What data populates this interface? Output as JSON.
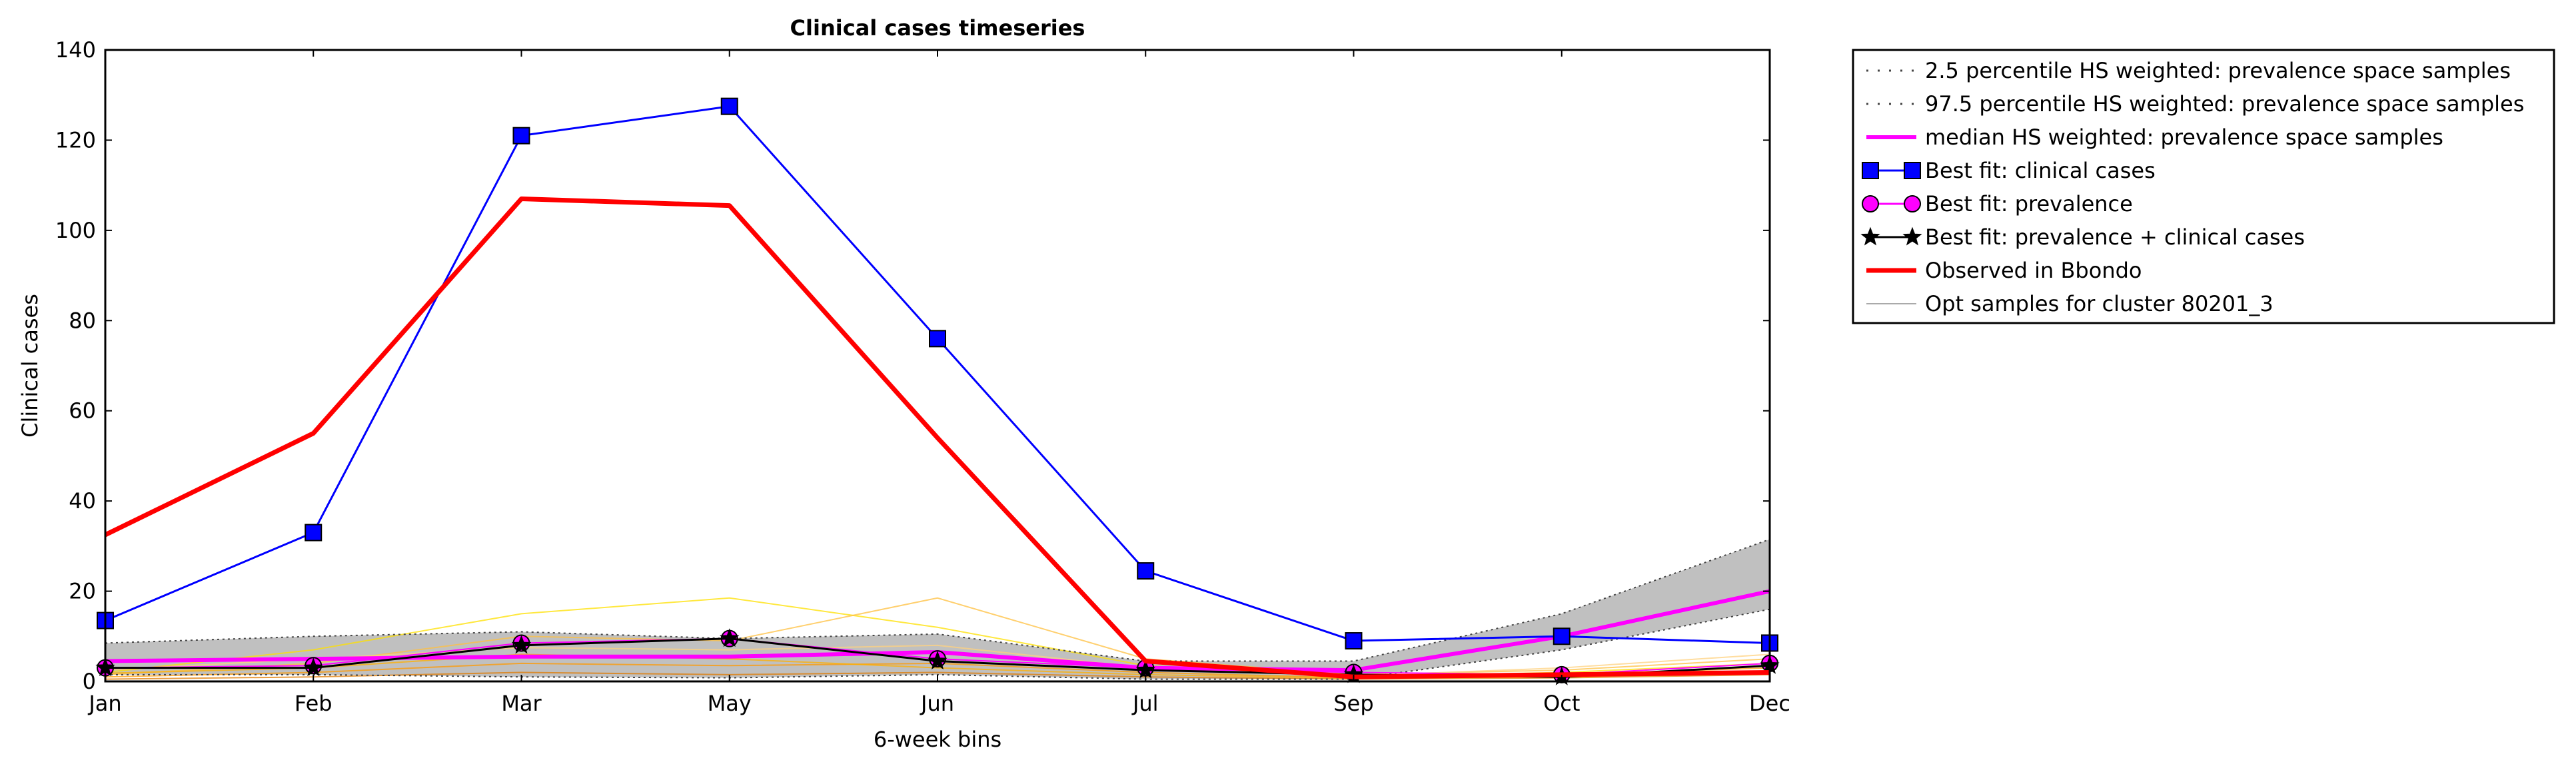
{
  "chart_data": {
    "type": "line",
    "title": "Clinical cases timeseries",
    "xlabel": "6-week bins",
    "ylabel": "Clinical cases",
    "categories": [
      "Jan",
      "Feb",
      "Mar",
      "May",
      "Jun",
      "Jul",
      "Sep",
      "Oct",
      "Dec"
    ],
    "yticks": [
      "0",
      "20",
      "40",
      "60",
      "80",
      "100",
      "120",
      "140"
    ],
    "ylim": [
      0,
      140
    ],
    "grid": false,
    "legend_position": "outside top-right",
    "band": {
      "lower_name": "2.5 percentile HS weighted: prevalence space samples",
      "upper_name": "97.5 percentile HS weighted: prevalence space samples",
      "lower": [
        1.5,
        1.5,
        1.0,
        0.8,
        1.5,
        0.5,
        0.5,
        7.0,
        16.0
      ],
      "upper": [
        8.5,
        10.0,
        11.0,
        9.5,
        10.5,
        4.5,
        4.5,
        15.0,
        31.5
      ],
      "fill_color": "#c0c0c0"
    },
    "series": [
      {
        "name": "median HS weighted: prevalence space samples",
        "color": "#ff00ff",
        "marker": "none",
        "values": [
          4.5,
          5.0,
          5.5,
          5.5,
          6.5,
          3.0,
          2.5,
          10.0,
          20.0
        ]
      },
      {
        "name": "Best fit: clinical cases",
        "color": "#0000ff",
        "marker": "square",
        "values": [
          13.5,
          33.0,
          121.0,
          127.5,
          76.0,
          24.5,
          9.0,
          10.0,
          8.5
        ]
      },
      {
        "name": "Best fit: prevalence",
        "color": "#ff00ff",
        "marker": "circle",
        "values": [
          3.0,
          3.5,
          8.5,
          9.5,
          5.0,
          3.0,
          2.0,
          1.5,
          4.0
        ]
      },
      {
        "name": "Best fit: prevalence + clinical cases",
        "color": "#000000",
        "marker": "star",
        "values": [
          3.0,
          3.0,
          8.0,
          9.5,
          4.5,
          2.5,
          1.5,
          1.0,
          3.5
        ]
      },
      {
        "name": "Observed in Bbondo",
        "color": "#ff0000",
        "marker": "none",
        "values": [
          32.5,
          55.0,
          107.0,
          105.5,
          54.0,
          4.5,
          1.0,
          1.5,
          2.0
        ]
      }
    ],
    "samples_name": "Opt samples for cluster 80201_3",
    "samples_color": "#aaaaaa",
    "sample_lines": [
      {
        "color": "#ffe000",
        "values": [
          2.0,
          7.0,
          15.0,
          18.5,
          12.0,
          3.5,
          1.0,
          2.0,
          4.0
        ]
      },
      {
        "color": "#ffc040",
        "values": [
          1.5,
          4.0,
          10.0,
          9.0,
          18.5,
          5.0,
          1.5,
          2.5,
          5.0
        ]
      },
      {
        "color": "#ff9900",
        "values": [
          1.0,
          2.0,
          4.0,
          3.5,
          4.0,
          2.0,
          0.8,
          1.5,
          3.0
        ]
      },
      {
        "color": "#ffd27f",
        "values": [
          2.5,
          5.0,
          7.5,
          7.0,
          8.0,
          3.0,
          1.2,
          3.0,
          6.0
        ]
      },
      {
        "color": "#e07b00",
        "values": [
          0.5,
          1.0,
          2.0,
          1.5,
          2.0,
          1.0,
          0.5,
          0.8,
          1.5
        ]
      },
      {
        "color": "#ffb000",
        "values": [
          1.8,
          3.0,
          6.0,
          5.0,
          3.0,
          1.5,
          0.7,
          1.0,
          2.0
        ]
      }
    ]
  }
}
